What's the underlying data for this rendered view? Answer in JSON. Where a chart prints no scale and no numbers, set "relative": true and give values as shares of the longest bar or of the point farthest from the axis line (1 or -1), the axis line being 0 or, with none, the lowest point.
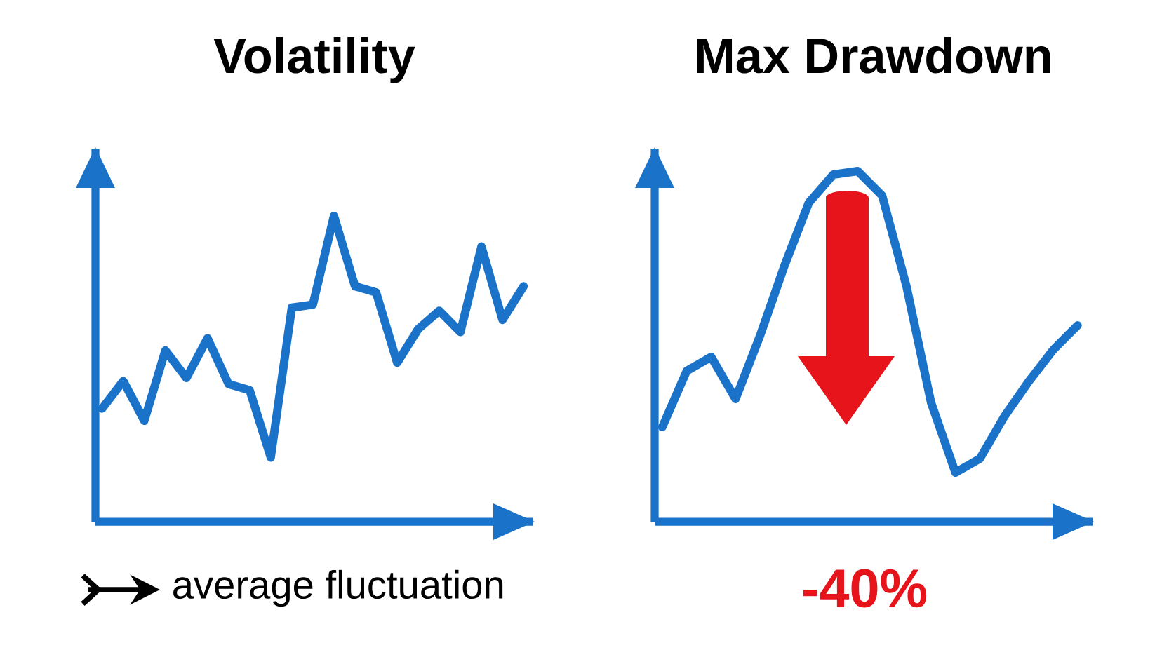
{
  "chart_data": [
    {
      "type": "line",
      "title": "Volatility",
      "categories": [
        null,
        null,
        null,
        null,
        null,
        null,
        null,
        null,
        null,
        null,
        null,
        null,
        null,
        null,
        null,
        null,
        null,
        null,
        null,
        null,
        null
      ],
      "values": [
        0.37,
        0.46,
        0.33,
        0.56,
        0.47,
        0.6,
        0.45,
        0.43,
        0.21,
        0.7,
        0.71,
        1.0,
        0.77,
        0.75,
        0.52,
        0.63,
        0.69,
        0.62,
        0.9,
        0.66,
        0.77
      ],
      "color": "#1a73c8",
      "relative": true,
      "annotations": [
        "average fluctuation"
      ]
    },
    {
      "type": "line",
      "title": "Max Drawdown",
      "categories": [
        null,
        null,
        null,
        null,
        null,
        null,
        null,
        null,
        null,
        null,
        null,
        null,
        null,
        null,
        null,
        null,
        null,
        null
      ],
      "values": [
        0.27,
        0.43,
        0.47,
        0.35,
        0.53,
        0.73,
        0.91,
        0.99,
        1.0,
        0.93,
        0.67,
        0.34,
        0.14,
        0.18,
        0.3,
        0.4,
        0.49,
        0.56
      ],
      "color": "#1a73c8",
      "relative": true,
      "annotations": [
        "-40%"
      ]
    }
  ]
}
